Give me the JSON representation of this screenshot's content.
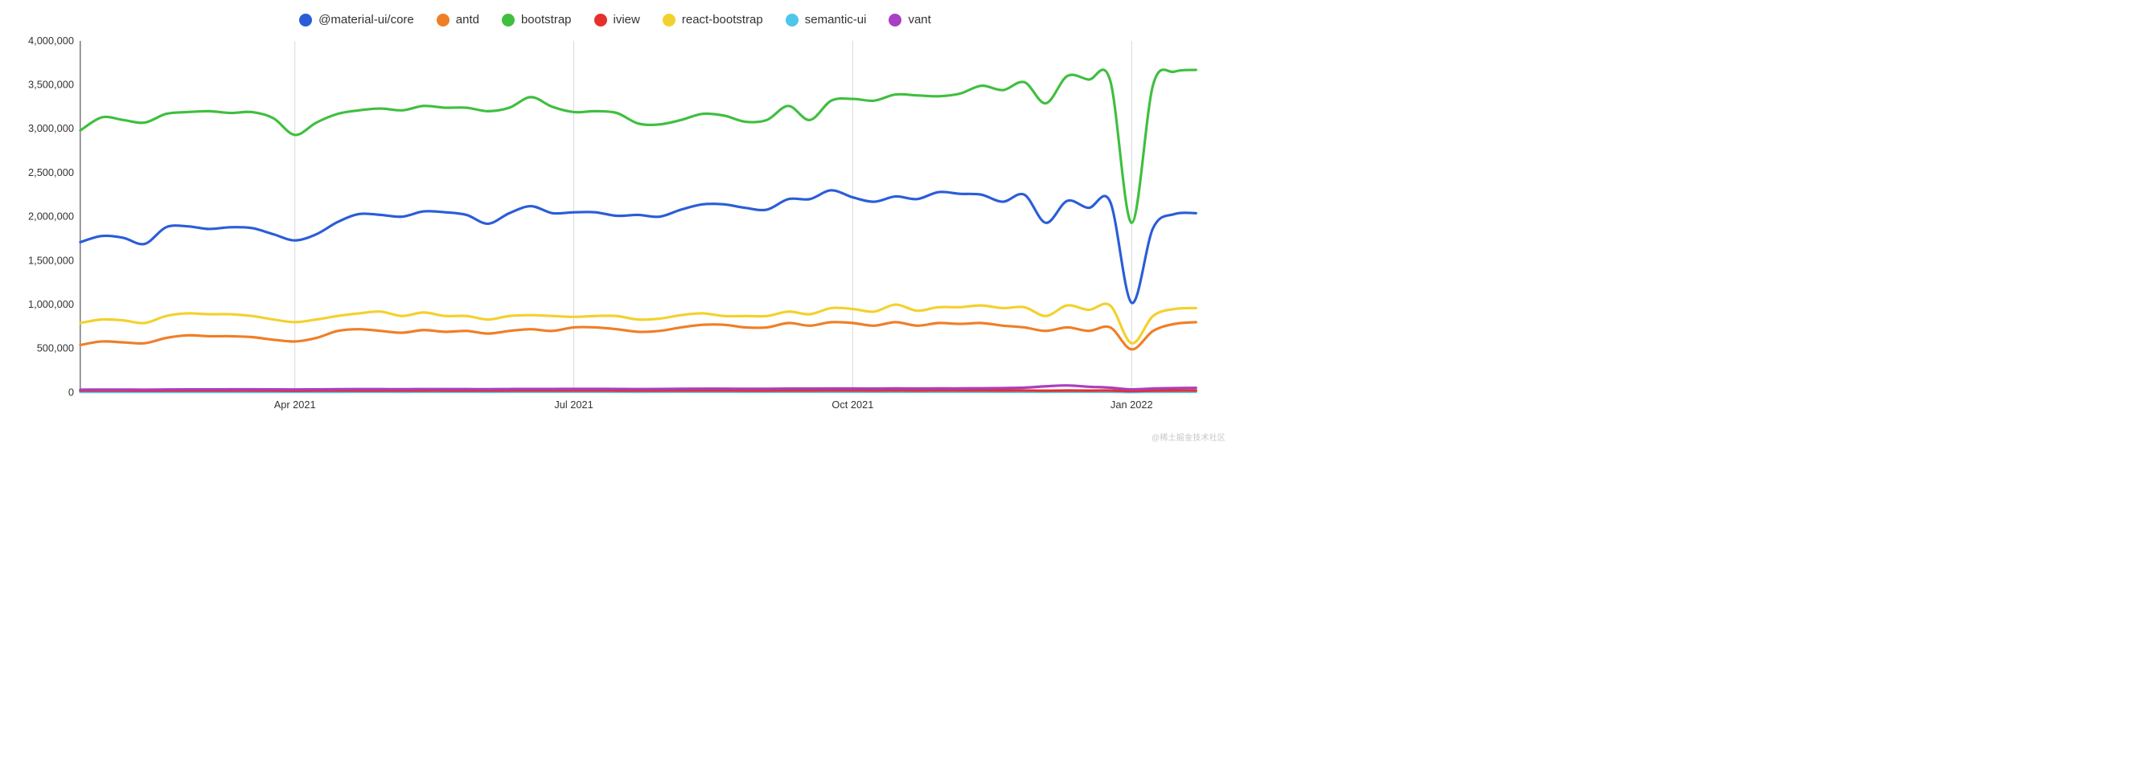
{
  "chart": {
    "type": "line",
    "background_color": "#ffffff",
    "axis_color": "#333333",
    "xgrid_color": "#d9d9d9",
    "line_width": 3.2,
    "y": {
      "lim": [
        0,
        4000000
      ],
      "tick_step": 500000,
      "tick_labels": [
        "0",
        "500,000",
        "1,000,000",
        "1,500,000",
        "2,000,000",
        "2,500,000",
        "3,000,000",
        "3,500,000",
        "4,000,000"
      ]
    },
    "x": {
      "lim": [
        0,
        52
      ],
      "ticks": [
        {
          "pos": 10,
          "label": "Apr 2021"
        },
        {
          "pos": 23,
          "label": "Jul 2021"
        },
        {
          "pos": 36,
          "label": "Oct 2021"
        },
        {
          "pos": 49,
          "label": "Jan 2022"
        }
      ]
    },
    "legend": [
      {
        "key": "material",
        "label": "@material-ui/core",
        "color": "#2b5dd8"
      },
      {
        "key": "antd",
        "label": "antd",
        "color": "#f07e26"
      },
      {
        "key": "bootstrap",
        "label": "bootstrap",
        "color": "#3fbf3f"
      },
      {
        "key": "iview",
        "label": "iview",
        "color": "#e6302b"
      },
      {
        "key": "react_bootstrap",
        "label": "react-bootstrap",
        "color": "#f3d12c"
      },
      {
        "key": "semantic_ui",
        "label": "semantic-ui",
        "color": "#4fc5e8"
      },
      {
        "key": "vant",
        "label": "vant",
        "color": "#a93fc2"
      }
    ],
    "series": {
      "bootstrap": [
        2980000,
        3130000,
        3100000,
        3070000,
        3170000,
        3190000,
        3200000,
        3180000,
        3190000,
        3120000,
        2930000,
        3070000,
        3170000,
        3210000,
        3230000,
        3210000,
        3260000,
        3240000,
        3240000,
        3200000,
        3240000,
        3360000,
        3250000,
        3190000,
        3200000,
        3180000,
        3060000,
        3050000,
        3100000,
        3170000,
        3150000,
        3080000,
        3100000,
        3260000,
        3100000,
        3320000,
        3340000,
        3320000,
        3390000,
        3380000,
        3370000,
        3400000,
        3490000,
        3440000,
        3530000,
        3290000,
        3600000,
        3560000,
        3550000,
        1930000,
        3500000,
        3650000,
        3670000
      ],
      "material": [
        1710000,
        1780000,
        1760000,
        1690000,
        1880000,
        1890000,
        1860000,
        1880000,
        1870000,
        1800000,
        1730000,
        1800000,
        1940000,
        2030000,
        2020000,
        2000000,
        2060000,
        2050000,
        2020000,
        1920000,
        2040000,
        2120000,
        2040000,
        2050000,
        2050000,
        2010000,
        2020000,
        2000000,
        2080000,
        2140000,
        2140000,
        2100000,
        2080000,
        2200000,
        2200000,
        2300000,
        2220000,
        2170000,
        2230000,
        2200000,
        2280000,
        2260000,
        2250000,
        2170000,
        2250000,
        1930000,
        2180000,
        2100000,
        2170000,
        1020000,
        1870000,
        2030000,
        2040000
      ],
      "react_bootstrap": [
        790000,
        830000,
        820000,
        790000,
        870000,
        900000,
        890000,
        890000,
        870000,
        830000,
        800000,
        830000,
        870000,
        900000,
        920000,
        870000,
        910000,
        870000,
        870000,
        830000,
        870000,
        880000,
        870000,
        860000,
        870000,
        870000,
        830000,
        840000,
        880000,
        900000,
        870000,
        870000,
        870000,
        920000,
        890000,
        960000,
        950000,
        920000,
        1000000,
        930000,
        970000,
        970000,
        990000,
        960000,
        970000,
        870000,
        990000,
        940000,
        990000,
        560000,
        870000,
        950000,
        960000
      ],
      "antd": [
        540000,
        580000,
        570000,
        560000,
        620000,
        650000,
        640000,
        640000,
        630000,
        600000,
        580000,
        620000,
        700000,
        720000,
        700000,
        680000,
        710000,
        690000,
        700000,
        670000,
        700000,
        720000,
        700000,
        740000,
        740000,
        720000,
        690000,
        700000,
        740000,
        770000,
        770000,
        740000,
        740000,
        790000,
        760000,
        800000,
        790000,
        760000,
        800000,
        760000,
        790000,
        780000,
        790000,
        760000,
        740000,
        700000,
        740000,
        700000,
        740000,
        490000,
        700000,
        780000,
        800000
      ],
      "vant": [
        32000,
        33000,
        33000,
        32000,
        34000,
        35000,
        35000,
        36000,
        36000,
        35000,
        34000,
        35000,
        37000,
        38000,
        38000,
        37000,
        39000,
        38000,
        38000,
        37000,
        39000,
        40000,
        40000,
        41000,
        41000,
        40000,
        39000,
        40000,
        42000,
        43000,
        43000,
        42000,
        42000,
        44000,
        44000,
        45000,
        45000,
        44000,
        46000,
        45000,
        46000,
        46000,
        48000,
        50000,
        55000,
        70000,
        80000,
        65000,
        55000,
        35000,
        45000,
        50000,
        52000
      ],
      "iview": [
        20000,
        20000,
        20000,
        19000,
        20000,
        20000,
        20000,
        21000,
        21000,
        20000,
        19000,
        20000,
        21000,
        21000,
        21000,
        20000,
        21000,
        21000,
        21000,
        20000,
        21000,
        22000,
        22000,
        22000,
        22000,
        21000,
        20000,
        21000,
        22000,
        22000,
        22000,
        21000,
        21000,
        22000,
        22000,
        23000,
        23000,
        22000,
        23000,
        22000,
        23000,
        23000,
        23000,
        22000,
        23000,
        20000,
        22000,
        21000,
        22000,
        15000,
        20000,
        22000,
        22000
      ],
      "semantic_ui": [
        7000,
        7000,
        7000,
        6800,
        7000,
        7200,
        7200,
        7200,
        7200,
        7000,
        6800,
        7000,
        7200,
        7400,
        7400,
        7200,
        7400,
        7400,
        7400,
        7200,
        7400,
        7600,
        7400,
        7600,
        7600,
        7400,
        7200,
        7400,
        7600,
        7800,
        7800,
        7600,
        7600,
        7800,
        7800,
        8000,
        8000,
        7800,
        8000,
        7800,
        8000,
        8000,
        8000,
        7800,
        7800,
        7200,
        7800,
        7400,
        7800,
        5000,
        7200,
        7800,
        8000
      ]
    }
  },
  "watermark": "@稀土掘金技术社区"
}
